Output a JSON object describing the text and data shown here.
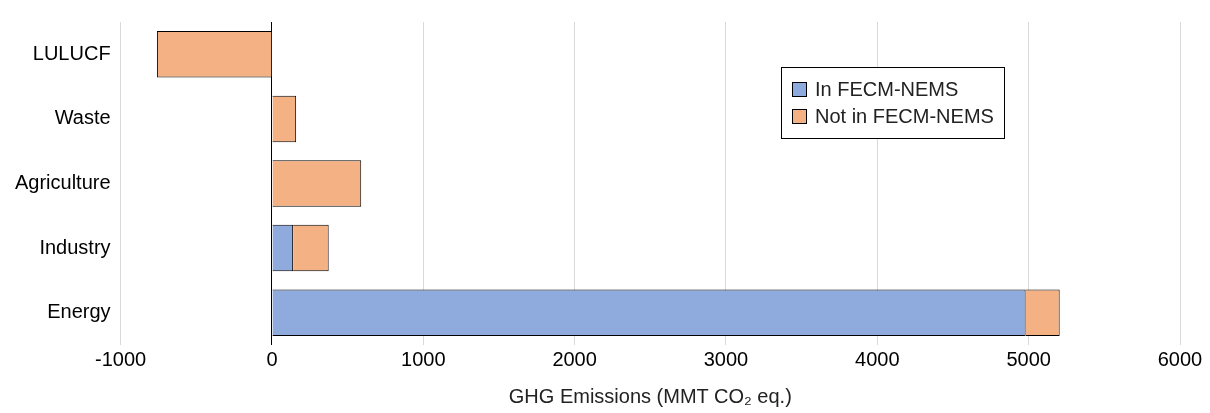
{
  "chart_data": {
    "type": "bar",
    "orientation": "horizontal",
    "stacked": true,
    "categories": [
      "LULUCF",
      "Waste",
      "Agriculture",
      "Industry",
      "Energy"
    ],
    "series": [
      {
        "name": "In FECM-NEMS",
        "color": "#8faadc",
        "values": [
          null,
          null,
          null,
          140,
          4980
        ]
      },
      {
        "name": "Not in FECM-NEMS",
        "color": "#f4b183",
        "values": [
          -760,
          160,
          590,
          235,
          225
        ]
      }
    ],
    "xlabel": "GHG Emissions (MMT CO₂ eq.)",
    "xlim": [
      -1000,
      6000
    ],
    "xticks": [
      -1000,
      0,
      1000,
      2000,
      3000,
      4000,
      5000,
      6000
    ],
    "grid": "x",
    "legend": "top right"
  }
}
